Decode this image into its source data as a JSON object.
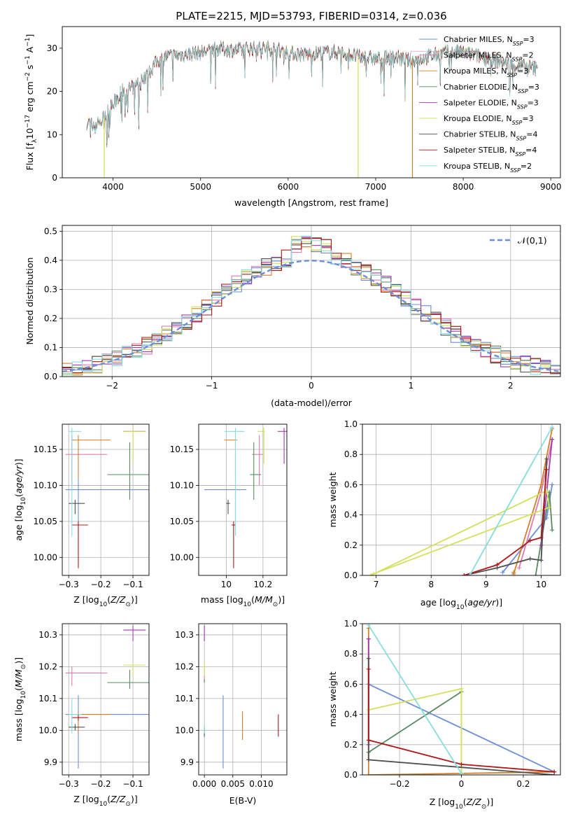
{
  "figure": {
    "title": "PLATE=2215, MJD=53793, FIBERID=0314, z=0.036"
  },
  "colors": {
    "Chabrier MILES": "#6a8fd8",
    "Salpeter MILES": "#e07ab0",
    "Kroupa MILES": "#d3802c",
    "Chabrier ELODIE": "#5a8a60",
    "Salpeter ELODIE": "#a43ab0",
    "Kroupa ELODIE": "#d2e05a",
    "Chabrier STELIB": "#505050",
    "Salpeter STELIB": "#b01818",
    "Kroupa STELIB": "#86dde0"
  },
  "chart_data": [
    {
      "id": "spectrum",
      "type": "line",
      "xlabel": "wavelength [Angstrom, rest frame]",
      "ylabel": "Flux [f_λ 10^-17 erg cm^-2 s^-1 A^-1]",
      "xlim": [
        3420,
        9110
      ],
      "ylim": [
        0,
        35
      ],
      "xticks": [
        4000,
        5000,
        6000,
        7000,
        8000,
        9000
      ],
      "yticks": [
        0,
        10,
        20,
        30
      ],
      "legend_position": "top-right",
      "legend": [
        {
          "name": "Chabrier MILES",
          "nssp": "3"
        },
        {
          "name": "Salpeter MILES",
          "nssp": "2"
        },
        {
          "name": "Kroupa MILES",
          "nssp": "3"
        },
        {
          "name": "Chabrier ELODIE",
          "nssp": "3"
        },
        {
          "name": "Salpeter ELODIE",
          "nssp": "3"
        },
        {
          "name": "Kroupa ELODIE",
          "nssp": "3"
        },
        {
          "name": "Chabrier STELIB",
          "nssp": "4"
        },
        {
          "name": "Salpeter STELIB",
          "nssp": "4"
        },
        {
          "name": "Kroupa STELIB",
          "nssp": "2"
        }
      ],
      "continuum": [
        [
          3700,
          13
        ],
        [
          3800,
          12
        ],
        [
          3900,
          14
        ],
        [
          3970,
          16
        ],
        [
          4100,
          20
        ],
        [
          4200,
          20.5
        ],
        [
          4300,
          22
        ],
        [
          4400,
          24
        ],
        [
          4500,
          27
        ],
        [
          4600,
          28
        ],
        [
          4800,
          28.5
        ],
        [
          5000,
          29
        ],
        [
          5200,
          30
        ],
        [
          5400,
          29.5
        ],
        [
          5600,
          30
        ],
        [
          5800,
          30
        ],
        [
          6000,
          29
        ],
        [
          6200,
          28.5
        ],
        [
          6400,
          29
        ],
        [
          6600,
          29
        ],
        [
          6800,
          28
        ],
        [
          7000,
          27.5
        ],
        [
          7200,
          28
        ],
        [
          7400,
          27
        ],
        [
          7600,
          28
        ],
        [
          7800,
          29
        ],
        [
          8000,
          29
        ],
        [
          8200,
          28
        ],
        [
          8400,
          27
        ],
        [
          8600,
          26
        ],
        [
          8800,
          25.5
        ],
        [
          8850,
          25
        ]
      ],
      "drops": [
        {
          "series": "Kroupa ELODIE",
          "x": 3900
        },
        {
          "series": "Kroupa ELODIE",
          "x": 6800
        },
        {
          "series": "Kroupa MILES",
          "x": 7420
        }
      ]
    },
    {
      "id": "residuals",
      "type": "histogram",
      "xlabel": "(data-model)/error",
      "ylabel": "Normed distribution",
      "xlim": [
        -2.5,
        2.5
      ],
      "ylim": [
        0,
        0.52
      ],
      "xticks": [
        -2,
        -1,
        0,
        1,
        2
      ],
      "yticks": [
        0.0,
        0.1,
        0.2,
        0.3,
        0.4,
        0.5
      ],
      "grid": true,
      "bin_width": 0.1,
      "reference_curve": "N(0,1)",
      "legend": "𝒩(0,1)",
      "legend_position": "top-right"
    },
    {
      "id": "age-vs-Z",
      "type": "errorbar",
      "xlabel": "Z [log10(Z/Z⊙)]",
      "ylabel": "age [log10(age/yr)]",
      "xlim": [
        -0.32,
        -0.05
      ],
      "ylim": [
        9.975,
        10.185
      ],
      "xticks": [
        -0.3,
        -0.2,
        -0.1
      ],
      "yticks": [
        10.0,
        10.05,
        10.1,
        10.15
      ],
      "grid": true
    },
    {
      "id": "age-vs-mass",
      "type": "errorbar",
      "xlabel": "mass [log10(M/M⊙)]",
      "ylabel": "",
      "xlim": [
        9.85,
        10.33
      ],
      "ylim": [
        9.975,
        10.185
      ],
      "xticks": [
        10.0,
        10.2
      ],
      "yticks": [
        10.0,
        10.05,
        10.1,
        10.15
      ],
      "grid": true
    },
    {
      "id": "weight-vs-age",
      "type": "line",
      "xlabel": "age [log10(age/yr)]",
      "ylabel": "mass weight",
      "xlim": [
        6.75,
        10.35
      ],
      "ylim": [
        0,
        1.0
      ],
      "xticks": [
        7,
        8,
        9,
        10
      ],
      "yticks": [
        0.0,
        0.2,
        0.4,
        0.6,
        0.8,
        1.0
      ],
      "grid": true,
      "series": [
        {
          "name": "Chabrier MILES",
          "points": [
            [
              9.3,
              0.02
            ],
            [
              10.1,
              0.38
            ],
            [
              10.2,
              0.6
            ]
          ]
        },
        {
          "name": "Salpeter MILES",
          "points": [
            [
              9.6,
              0.05
            ],
            [
              10.0,
              0.55
            ],
            [
              10.2,
              0.9
            ]
          ]
        },
        {
          "name": "Kroupa MILES",
          "points": [
            [
              9.5,
              0.02
            ],
            [
              9.5,
              0.01
            ],
            [
              10.0,
              0.6
            ],
            [
              10.2,
              0.97
            ]
          ]
        },
        {
          "name": "Chabrier ELODIE",
          "points": [
            [
              9.9,
              0.0
            ],
            [
              10.15,
              0.55
            ],
            [
              10.2,
              0.3
            ]
          ]
        },
        {
          "name": "Salpeter ELODIE",
          "points": [
            [
              10.0,
              0.2
            ],
            [
              10.2,
              0.9
            ]
          ]
        },
        {
          "name": "Kroupa ELODIE",
          "points": [
            [
              6.9,
              0.0
            ],
            [
              10.1,
              0.56
            ],
            [
              10.15,
              0.45
            ],
            [
              6.95,
              0.01
            ]
          ]
        },
        {
          "name": "Chabrier STELIB",
          "points": [
            [
              8.6,
              0.0
            ],
            [
              9.2,
              0.05
            ],
            [
              9.8,
              0.11
            ],
            [
              10.0,
              0.1
            ],
            [
              10.1,
              0.77
            ]
          ]
        },
        {
          "name": "Salpeter STELIB",
          "points": [
            [
              8.6,
              0.0
            ],
            [
              9.2,
              0.07
            ],
            [
              9.8,
              0.23
            ],
            [
              10.0,
              0.25
            ],
            [
              10.1,
              0.7
            ]
          ]
        },
        {
          "name": "Kroupa STELIB",
          "points": [
            [
              8.7,
              0.0
            ],
            [
              10.2,
              0.98
            ]
          ]
        }
      ]
    },
    {
      "id": "mass-vs-Z",
      "type": "errorbar",
      "xlabel": "Z [log10(Z/Z⊙)]",
      "ylabel": "mass [log10(M/M⊙)]",
      "xlim": [
        -0.32,
        -0.05
      ],
      "ylim": [
        9.86,
        10.335
      ],
      "xticks": [
        -0.3,
        -0.2,
        -0.1
      ],
      "yticks": [
        9.9,
        10.0,
        10.1,
        10.2,
        10.3
      ],
      "grid": true
    },
    {
      "id": "mass-vs-EBV",
      "type": "errorbar",
      "xlabel": "E(B-V)",
      "ylabel": "",
      "xlim": [
        -0.001,
        0.0145
      ],
      "ylim": [
        9.86,
        10.335
      ],
      "xticks": [
        0.0,
        0.005,
        0.01
      ],
      "xticklabels": [
        "0.000",
        "0.005",
        "0.010"
      ],
      "yticks": [
        9.9,
        10.0,
        10.1,
        10.2,
        10.3
      ],
      "grid": true
    },
    {
      "id": "weight-vs-Z",
      "type": "line",
      "xlabel": "Z [log10(Z/Z⊙)]",
      "ylabel": "mass weight",
      "xlim": [
        -0.32,
        0.32
      ],
      "ylim": [
        0,
        1.0
      ],
      "xticks": [
        -0.2,
        0.0,
        0.2
      ],
      "yticks": [
        0.0,
        0.2,
        0.4,
        0.6,
        0.8,
        1.0
      ],
      "grid": true,
      "series": [
        {
          "name": "Chabrier MILES",
          "points": [
            [
              -0.3,
              0.6
            ],
            [
              0.3,
              0.02
            ]
          ]
        },
        {
          "name": "Salpeter MILES",
          "points": [
            [
              -0.3,
              0.9
            ],
            [
              -0.3,
              0.1
            ]
          ]
        },
        {
          "name": "Kroupa MILES",
          "points": [
            [
              -0.3,
              0.97
            ],
            [
              -0.3,
              0.0
            ],
            [
              0.3,
              0.02
            ]
          ]
        },
        {
          "name": "Chabrier ELODIE",
          "points": [
            [
              -0.3,
              0.15
            ],
            [
              0.0,
              0.55
            ]
          ]
        },
        {
          "name": "Salpeter ELODIE",
          "points": [
            [
              -0.3,
              0.9
            ],
            [
              -0.3,
              0.2
            ]
          ]
        },
        {
          "name": "Kroupa ELODIE",
          "points": [
            [
              -0.3,
              0.43
            ],
            [
              0.0,
              0.57
            ],
            [
              0.0,
              0.0
            ]
          ]
        },
        {
          "name": "Chabrier STELIB",
          "points": [
            [
              -0.3,
              0.77
            ],
            [
              -0.3,
              0.1
            ],
            [
              0.3,
              0.0
            ]
          ]
        },
        {
          "name": "Salpeter STELIB",
          "points": [
            [
              -0.3,
              0.7
            ],
            [
              -0.3,
              0.23
            ],
            [
              0.0,
              0.07
            ],
            [
              0.3,
              0.02
            ]
          ]
        },
        {
          "name": "Kroupa STELIB",
          "points": [
            [
              -0.3,
              0.99
            ],
            [
              0.0,
              0.01
            ]
          ]
        }
      ]
    }
  ],
  "fit_results": [
    {
      "name": "Chabrier MILES",
      "Z": -0.27,
      "Zerr": [
        -0.31,
        -0.05
      ],
      "age": 10.094,
      "ageErr": [
        10.03,
        10.11
      ],
      "mass": 10.05,
      "massErr": [
        9.88,
        10.11
      ],
      "ebv": 0.0033,
      "massEbvErr": [
        9.88,
        10.11
      ]
    },
    {
      "name": "Salpeter MILES",
      "Z": -0.29,
      "Zerr": [
        -0.31,
        -0.18
      ],
      "age": 10.143,
      "ageErr": [
        10.1,
        10.17
      ],
      "mass": 10.18,
      "massErr": [
        10.14,
        10.2
      ],
      "ebv": 0.0,
      "massEbvErr": [
        10.15,
        10.2
      ]
    },
    {
      "name": "Kroupa MILES",
      "Z": -0.27,
      "Zerr": [
        -0.29,
        -0.17
      ],
      "age": 10.163,
      "ageErr": [
        10.11,
        10.17
      ],
      "mass": 10.05,
      "massErr": [
        9.99,
        10.06
      ],
      "ebv": 0.0067,
      "massEbvErr": [
        9.97,
        10.06
      ]
    },
    {
      "name": "Chabrier ELODIE",
      "Z": -0.11,
      "Zerr": [
        -0.18,
        -0.05
      ],
      "age": 10.115,
      "ageErr": [
        10.08,
        10.16
      ],
      "mass": 10.15,
      "massErr": [
        10.13,
        10.19
      ],
      "ebv": 0.0,
      "massEbvErr": [
        10.15,
        10.16
      ]
    },
    {
      "name": "Salpeter ELODIE",
      "Z": -0.1,
      "Zerr": [
        -0.13,
        -0.06
      ],
      "age": 10.175,
      "ageErr": [
        10.13,
        10.18
      ],
      "mass": 10.315,
      "massErr": [
        10.28,
        10.33
      ],
      "ebv": 0.0,
      "massEbvErr": [
        10.28,
        10.33
      ]
    },
    {
      "name": "Kroupa ELODIE",
      "Z": -0.1,
      "Zerr": [
        -0.13,
        -0.06
      ],
      "age": 10.175,
      "ageErr": [
        10.13,
        10.18
      ],
      "mass": 10.205,
      "massErr": [
        10.17,
        10.21
      ],
      "ebv": 0.0,
      "massEbvErr": [
        10.17,
        10.21
      ]
    },
    {
      "name": "Chabrier STELIB",
      "Z": -0.28,
      "Zerr": [
        -0.3,
        -0.25
      ],
      "age": 10.075,
      "ageErr": [
        10.06,
        10.08
      ],
      "mass": 10.01,
      "massErr": [
        10.0,
        10.02
      ],
      "ebv": 0.0,
      "massEbvErr": [
        9.98,
        10.01
      ]
    },
    {
      "name": "Salpeter STELIB",
      "Z": -0.27,
      "Zerr": [
        -0.29,
        -0.24
      ],
      "age": 10.045,
      "ageErr": [
        9.985,
        10.05
      ],
      "mass": 10.04,
      "massErr": [
        10.03,
        10.05
      ],
      "ebv": 0.013,
      "massEbvErr": [
        9.98,
        10.05
      ]
    },
    {
      "name": "Kroupa STELIB",
      "Z": -0.29,
      "Zerr": [
        -0.3,
        -0.26
      ],
      "age": 10.175,
      "ageErr": [
        10.03,
        10.18
      ],
      "mass": 10.05,
      "massErr": [
        9.99,
        10.1
      ],
      "ebv": 0.0,
      "massEbvErr": [
        9.99,
        10.02
      ]
    }
  ]
}
